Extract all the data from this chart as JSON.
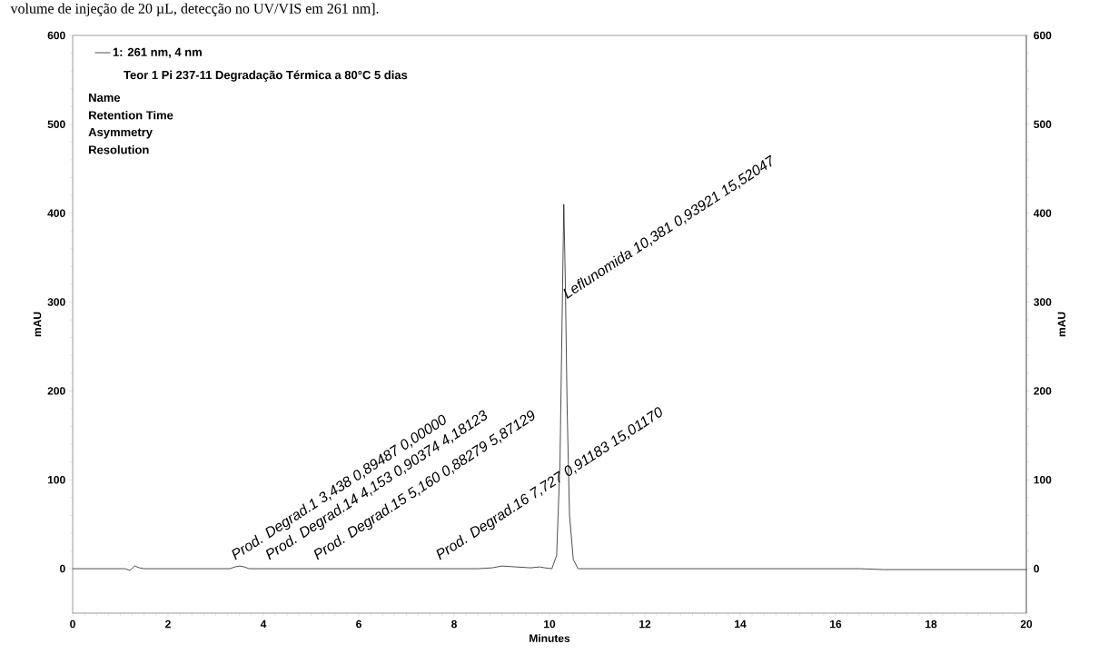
{
  "chart_data": {
    "type": "line",
    "title": "Teor 1 Pi 237-11 Degradação Térmica a 80°C 5 dias",
    "xlabel": "Minutes",
    "ylabel": "mAU",
    "y2label": "mAU",
    "xlim": [
      0,
      20
    ],
    "xticks": [
      0,
      2,
      4,
      6,
      8,
      10,
      12,
      14,
      16,
      18,
      20
    ],
    "ylim": [
      -50,
      600
    ],
    "yticks": [
      0,
      100,
      200,
      300,
      400,
      500,
      600
    ],
    "y2lim": [
      -50,
      600
    ],
    "y2ticks": [
      0,
      100,
      200,
      300,
      400,
      500,
      600
    ],
    "legend": "top left",
    "grid": false,
    "marker": "none",
    "line_style": "solid",
    "series": [
      {
        "name": "1: 261 nm, 4 nm",
        "color": "#000000",
        "x": [
          0,
          1.1,
          1.2,
          1.3,
          1.4,
          1.5,
          3.3,
          3.4,
          3.5,
          3.6,
          3.7,
          8.5,
          8.8,
          9.0,
          9.3,
          9.6,
          9.8,
          9.9,
          10.05,
          10.15,
          10.22,
          10.27,
          10.3,
          10.33,
          10.37,
          10.42,
          10.5,
          10.6,
          16.5,
          17,
          20
        ],
        "values": [
          0,
          0,
          -2,
          3,
          1,
          0,
          0,
          2,
          3,
          2,
          0,
          0,
          1,
          3,
          2,
          1,
          2,
          1,
          0,
          15,
          120,
          300,
          410,
          330,
          180,
          60,
          10,
          0,
          0,
          -1,
          -1
        ]
      }
    ],
    "annotations": [
      "volume de injeção de 20 µL, detecção no UV/VIS em 261 nm].",
      "Name",
      "Retention Time",
      "Asymmetry",
      "Resolution",
      {
        "text": "Prod. Degrad.1    3,438 0,89487  0,00000",
        "x": 3.438,
        "y": 5
      },
      {
        "text": "Prod. Degrad.14  4,153 0,90374  4,18123",
        "x": 4.153,
        "y": 5
      },
      {
        "text": "Prod. Degrad.15  5,160 0,88279  5,87129",
        "x": 5.16,
        "y": 5
      },
      {
        "text": "Prod. Degrad.16  7,727 0,91183  15,01170",
        "x": 7.727,
        "y": 5
      },
      {
        "text": "Leflunomida 10,381 0,93921 15,52047",
        "x": 10.381,
        "y": 300
      }
    ]
  }
}
